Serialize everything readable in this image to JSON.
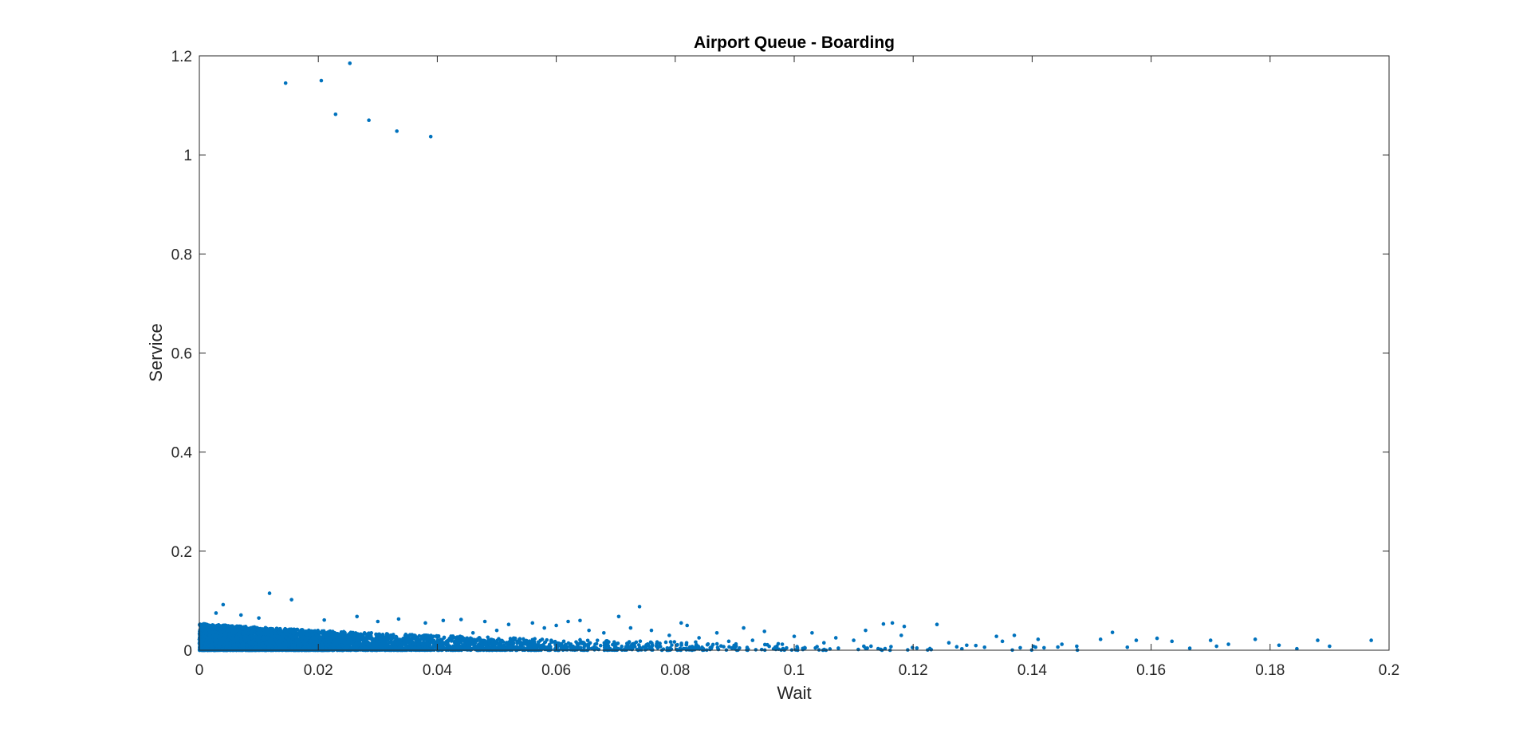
{
  "chart_data": {
    "type": "scatter",
    "title": "Airport Queue - Boarding",
    "xlabel": "Wait",
    "ylabel": "Service",
    "xlim": [
      0,
      0.2
    ],
    "ylim": [
      0,
      1.2
    ],
    "xticks": [
      "0",
      "0.02",
      "0.04",
      "0.06",
      "0.08",
      "0.1",
      "0.12",
      "0.14",
      "0.16",
      "0.18",
      "0.2"
    ],
    "yticks": [
      "0",
      "0.2",
      "0.4",
      "0.6",
      "0.8",
      "1",
      "1.2"
    ],
    "grid": false,
    "legend": "none",
    "marker_color": "#0072BD",
    "series": [
      {
        "x": [
          0.0145,
          0.0205,
          0.0253,
          0.0229,
          0.0285,
          0.0332,
          0.0389,
          0.0118,
          0.0155,
          0.004,
          0.074,
          0.0028,
          0.007,
          0.01,
          0.021,
          0.0265,
          0.03,
          0.0335,
          0.038,
          0.041,
          0.044,
          0.048,
          0.052,
          0.056,
          0.06,
          0.064,
          0.0705,
          0.0725,
          0.076,
          0.081,
          0.082,
          0.087,
          0.0915,
          0.095,
          0.1,
          0.103,
          0.107,
          0.112,
          0.115,
          0.1165,
          0.1185,
          0.124,
          0.129,
          0.134,
          0.135,
          0.137,
          0.141,
          0.145,
          0.1475,
          0.1515,
          0.1535,
          0.1575,
          0.161,
          0.1635,
          0.17,
          0.173,
          0.1775,
          0.1815,
          0.188,
          0.19,
          0.197,
          0.142,
          0.126,
          0.118,
          0.11,
          0.105,
          0.098,
          0.093,
          0.089,
          0.084,
          0.079,
          0.068,
          0.058,
          0.05,
          0.046,
          0.132,
          0.138,
          0.156,
          0.1665,
          0.171,
          0.1845,
          0.0655,
          0.062
        ],
        "y": [
          1.145,
          1.15,
          1.185,
          1.082,
          1.07,
          1.048,
          1.037,
          0.115,
          0.102,
          0.092,
          0.088,
          0.075,
          0.071,
          0.065,
          0.061,
          0.068,
          0.058,
          0.063,
          0.055,
          0.06,
          0.062,
          0.058,
          0.052,
          0.055,
          0.05,
          0.06,
          0.068,
          0.045,
          0.04,
          0.055,
          0.05,
          0.035,
          0.045,
          0.038,
          0.028,
          0.035,
          0.025,
          0.04,
          0.053,
          0.055,
          0.048,
          0.052,
          0.01,
          0.028,
          0.018,
          0.03,
          0.022,
          0.012,
          0.008,
          0.022,
          0.036,
          0.02,
          0.024,
          0.018,
          0.02,
          0.012,
          0.022,
          0.01,
          0.02,
          0.008,
          0.02,
          0.005,
          0.015,
          0.03,
          0.02,
          0.015,
          0.012,
          0.02,
          0.018,
          0.025,
          0.03,
          0.035,
          0.045,
          0.04,
          0.035,
          0.006,
          0.005,
          0.006,
          0.004,
          0.008,
          0.003,
          0.04,
          0.058
        ]
      }
    ]
  }
}
